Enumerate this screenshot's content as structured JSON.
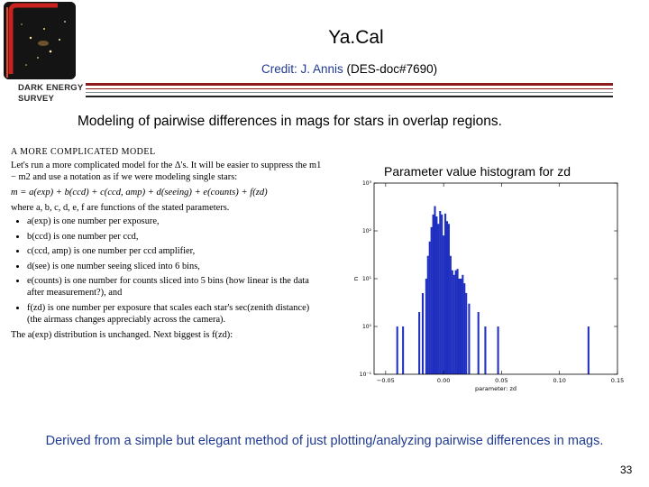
{
  "header": {
    "logo_line1": "DARK ENERGY",
    "logo_line2": "SURVEY",
    "title": "Ya.Cal",
    "credit_prefix": "Credit: ",
    "credit_author": "J. Annis ",
    "credit_ref": "(DES-doc#7690)"
  },
  "subtitle": "Modeling of pairwise differences in mags for stars in overlap regions.",
  "paper": {
    "heading": "A MORE COMPLICATED MODEL",
    "intro": "Let's run a more complicated model for the Δ's. It will be easier to suppress the m1 − m2 and use a notation as if we were modeling single stars:",
    "equation": "m = a(exp) + b(ccd) + c(ccd, amp) + d(seeing) + e(counts) + f(zd)",
    "where": "where a, b, c, d, e, f are functions of the stated parameters.",
    "bullets": [
      "a(exp) is one number per exposure,",
      "b(ccd) is one number per ccd,",
      "c(ccd, amp) is one number per ccd amplifier,",
      "d(see) is one number seeing sliced into 6 bins,",
      "e(counts) is one number for counts sliced into 5 bins (how linear is the data after measurement?), and",
      "f(zd) is one number per exposure that scales each star's sec(zenith distance) (the airmass changes appreciably across the camera)."
    ],
    "closing": "The a(exp) distribution is unchanged. Next biggest is f(zd):"
  },
  "histogram_caption": "Parameter value histogram for zd",
  "chart_data": {
    "type": "bar",
    "title": "",
    "xlabel": "parameter: zd",
    "ylabel": "n",
    "xlim": [
      -0.06,
      0.15
    ],
    "yscale": "log",
    "ylim": [
      0.1,
      1000
    ],
    "xticks": [
      -0.05,
      0.0,
      0.05,
      0.1,
      0.15
    ],
    "xtick_labels": [
      "−0.05",
      "0.00",
      "0.05",
      "0.10",
      "0.15"
    ],
    "yticks": [
      0.1,
      1,
      10,
      100,
      1000
    ],
    "ytick_labels": [
      "10⁻¹",
      "10⁰",
      "10¹",
      "10²",
      "10³"
    ],
    "bar_width": 0.0016,
    "color": "#1f2fbf",
    "x": [
      -0.04,
      -0.035,
      -0.021,
      -0.018,
      -0.015,
      -0.0135,
      -0.012,
      -0.0105,
      -0.009,
      -0.0075,
      -0.006,
      -0.0045,
      -0.003,
      -0.0015,
      0.0,
      0.0015,
      0.003,
      0.0045,
      0.006,
      0.0075,
      0.009,
      0.0105,
      0.012,
      0.0135,
      0.015,
      0.0165,
      0.018,
      0.0195,
      0.022,
      0.03,
      0.036,
      0.047,
      0.125
    ],
    "values": [
      1,
      1,
      2,
      5,
      10,
      30,
      60,
      120,
      220,
      330,
      200,
      140,
      260,
      220,
      80,
      230,
      160,
      140,
      30,
      15,
      12,
      15,
      16,
      10,
      10,
      12,
      8,
      5,
      3,
      2,
      1,
      1,
      1
    ]
  },
  "footer": "Derived from a simple but elegant method of just plotting/analyzing pairwise differences in mags.",
  "page_number": "33"
}
